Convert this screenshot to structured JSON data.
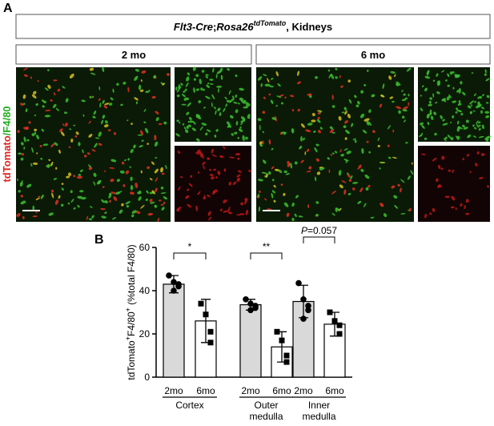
{
  "panel_a": {
    "label": "A",
    "header": [
      "Flt3-Cre",
      ";",
      "Rosa26",
      "tdTomato",
      ", Kidneys"
    ],
    "columns": [
      "2 mo",
      "6 mo"
    ],
    "side_label": [
      "tdTomato",
      "/F4/80"
    ]
  },
  "chart_data": {
    "type": "bar",
    "label": "B",
    "ylabel": [
      "tdTomato",
      "+",
      "F4/80",
      "+",
      " (%total F4/80)"
    ],
    "groups": [
      [
        "Cortex"
      ],
      [
        "Outer",
        "medulla"
      ],
      [
        "Inner",
        "medulla"
      ]
    ],
    "series": [
      {
        "name": "2mo",
        "color": "#d9d9d9",
        "marker": "circle",
        "values": [
          43,
          33.5,
          35
        ],
        "errors": [
          4,
          2.5,
          7.5
        ],
        "points": [
          [
            47,
            44,
            43,
            42,
            40
          ],
          [
            36,
            34,
            33,
            32,
            31
          ],
          [
            43.5,
            36,
            33,
            31,
            27
          ]
        ]
      },
      {
        "name": "6mo",
        "color": "#ffffff",
        "marker": "square",
        "values": [
          26,
          14,
          24.5
        ],
        "errors": [
          10,
          7,
          5.5
        ],
        "points": [
          [
            34,
            29,
            21,
            16
          ],
          [
            21,
            17,
            10,
            7
          ],
          [
            30,
            26,
            24,
            20
          ]
        ]
      }
    ],
    "annotations": [
      [
        "*"
      ],
      [
        "**"
      ],
      [
        "P",
        "=0.057"
      ]
    ],
    "ylim": [
      0,
      60
    ],
    "yticks": [
      0,
      20,
      40,
      60
    ]
  }
}
